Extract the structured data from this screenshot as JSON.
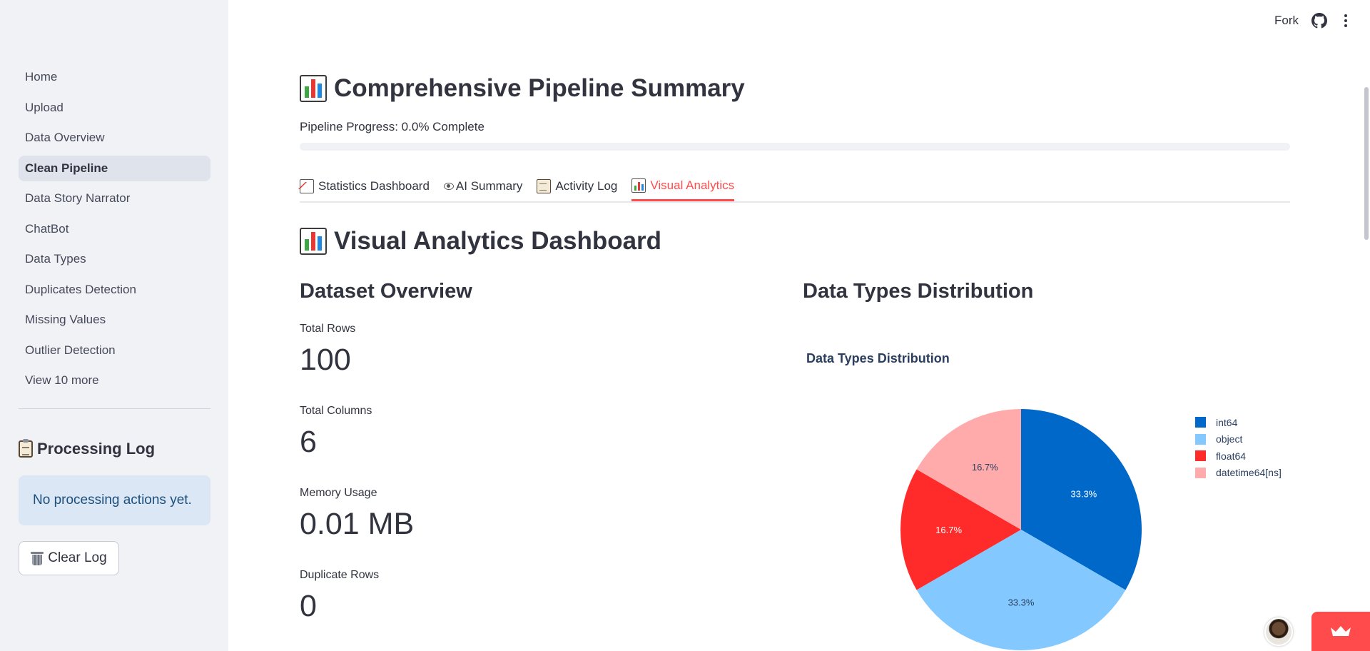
{
  "sidebar": {
    "nav": [
      {
        "label": "Home",
        "name": "sidebar-item-home",
        "active": false
      },
      {
        "label": "Upload",
        "name": "sidebar-item-upload",
        "active": false
      },
      {
        "label": "Data Overview",
        "name": "sidebar-item-data-overview",
        "active": false
      },
      {
        "label": "Clean Pipeline",
        "name": "sidebar-item-clean-pipeline",
        "active": true
      },
      {
        "label": "Data Story Narrator",
        "name": "sidebar-item-data-story-narrator",
        "active": false
      },
      {
        "label": "ChatBot",
        "name": "sidebar-item-chatbot",
        "active": false
      },
      {
        "label": "Data Types",
        "name": "sidebar-item-data-types",
        "active": false
      },
      {
        "label": "Duplicates Detection",
        "name": "sidebar-item-duplicates-detection",
        "active": false
      },
      {
        "label": "Missing Values",
        "name": "sidebar-item-missing-values",
        "active": false
      },
      {
        "label": "Outlier Detection",
        "name": "sidebar-item-outlier-detection",
        "active": false
      }
    ],
    "view_more": "View 10 more",
    "log_title": "Processing Log",
    "log_empty": "No processing actions yet.",
    "clear_log": "Clear Log"
  },
  "toolbar": {
    "fork": "Fork"
  },
  "page": {
    "title": "Comprehensive Pipeline Summary",
    "progress_label": "Pipeline Progress: 0.0% Complete",
    "progress": 0.0,
    "tabs": [
      {
        "label": "Statistics Dashboard",
        "icon": "chart-increasing-icon",
        "active": false
      },
      {
        "label": "AI Summary",
        "icon": "eye-icon",
        "active": false
      },
      {
        "label": "Activity Log",
        "icon": "clipboard-icon",
        "active": false
      },
      {
        "label": "Visual Analytics",
        "icon": "bar-chart-icon",
        "active": true
      }
    ],
    "section_title": "Visual Analytics Dashboard",
    "overview_title": "Dataset Overview",
    "metrics": [
      {
        "label": "Total Rows",
        "value": "100"
      },
      {
        "label": "Total Columns",
        "value": "6"
      },
      {
        "label": "Memory Usage",
        "value": "0.01 MB"
      },
      {
        "label": "Duplicate Rows",
        "value": "0"
      }
    ],
    "dist_title": "Data Types Distribution"
  },
  "chart_data": {
    "type": "pie",
    "title": "Data Types Distribution",
    "labels": [
      "int64",
      "object",
      "float64",
      "datetime64[ns]"
    ],
    "values": [
      2,
      2,
      1,
      1
    ],
    "percent_labels": [
      "33.3%",
      "33.3%",
      "16.7%",
      "16.7%"
    ],
    "colors": [
      "#0068c9",
      "#83c9ff",
      "#ff2b2b",
      "#ffabab"
    ],
    "label_colors": [
      "#ffffff",
      "#2a3f5f",
      "#ffffff",
      "#2a3f5f"
    ],
    "legend_position": "right",
    "direction": "clockwise",
    "start": "top"
  }
}
